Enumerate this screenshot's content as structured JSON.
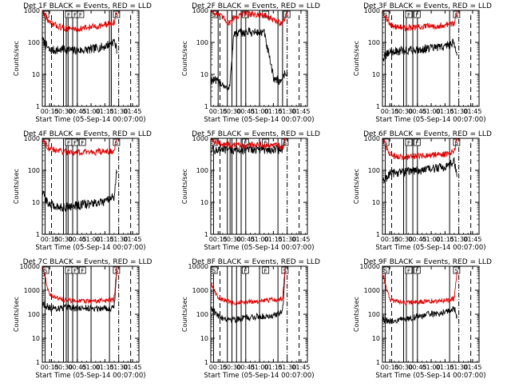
{
  "figure": {
    "x_tick_labels": [
      "00:15",
      "00:30",
      "00:45",
      "01:00",
      "01:15",
      "01:30",
      "01:45"
    ],
    "xlabel": "Start Time (05-Sep-14 00:07:00)",
    "ylabel": "Counts/sec",
    "colors": {
      "events": "#000000",
      "lld": "#e00000"
    },
    "marker_letters": [
      "S",
      "F"
    ]
  },
  "chart_data": [
    {
      "type": "line",
      "title": "Det 1F BLACK = Events, RED = LLD",
      "x_unit": "hh:mm",
      "ylim": [
        1,
        1000
      ],
      "yscale": "log",
      "y_tick_labels": [
        "1",
        "10",
        "100",
        "1000"
      ],
      "x": [
        "00:07",
        "00:15",
        "00:30",
        "00:45",
        "01:00",
        "01:15",
        "01:25",
        "01:28"
      ],
      "series": [
        {
          "name": "Events",
          "values": [
            120,
            55,
            60,
            55,
            60,
            75,
            110,
            60
          ]
        },
        {
          "name": "LLD",
          "values": [
            1000,
            400,
            280,
            260,
            300,
            350,
            420,
            900
          ]
        }
      ],
      "shutter_lines": [
        "00:10",
        "00:30",
        "00:33",
        "00:35",
        "00:40",
        "00:45",
        "01:20",
        "01:22"
      ],
      "dashed_lines": [
        "00:17",
        "01:43"
      ],
      "markers": [
        {
          "letter": "S",
          "at": "00:08"
        },
        {
          "letter": "F",
          "at": "00:33"
        },
        {
          "letter": "F",
          "at": "00:40"
        },
        {
          "letter": "F",
          "at": "00:46"
        },
        {
          "letter": "S",
          "at": "01:25"
        }
      ]
    },
    {
      "type": "line",
      "title": "Det 2F BLACK = Events, RED = LLD",
      "x_unit": "hh:mm",
      "ylim": [
        1,
        1000
      ],
      "yscale": "log",
      "y_tick_labels": [
        "1",
        "10",
        "100",
        "1000"
      ],
      "x": [
        "00:07",
        "00:20",
        "00:27",
        "00:32",
        "00:45",
        "01:05",
        "01:15",
        "01:22",
        "01:27",
        "01:30"
      ],
      "series": [
        {
          "name": "Events",
          "values": [
            7,
            5,
            3,
            180,
            210,
            200,
            8,
            6,
            10,
            12
          ]
        },
        {
          "name": "LLD",
          "values": [
            1000,
            600,
            400,
            600,
            800,
            700,
            500,
            400,
            500,
            900
          ]
        }
      ],
      "shutter_lines": [
        "00:15",
        "00:25",
        "00:30",
        "00:35",
        "00:40",
        "00:45",
        "01:00",
        "01:20",
        "01:25"
      ],
      "dashed_lines": [
        "00:17",
        "01:43"
      ],
      "markers": [
        {
          "letter": "S",
          "at": "00:08"
        },
        {
          "letter": "F",
          "at": "00:42"
        },
        {
          "letter": "F",
          "at": "01:04"
        },
        {
          "letter": "S",
          "at": "01:27"
        }
      ]
    },
    {
      "type": "line",
      "title": "Det 3F BLACK = Events, RED = LLD",
      "x_unit": "hh:mm",
      "ylim": [
        1,
        1000
      ],
      "yscale": "log",
      "y_tick_labels": [
        "1",
        "10",
        "100",
        "1000"
      ],
      "x": [
        "00:07",
        "00:15",
        "00:30",
        "00:45",
        "01:00",
        "01:15",
        "01:25",
        "01:28"
      ],
      "series": [
        {
          "name": "Events",
          "values": [
            30,
            50,
            55,
            60,
            65,
            75,
            100,
            40
          ]
        },
        {
          "name": "LLD",
          "values": [
            1000,
            350,
            280,
            300,
            320,
            350,
            400,
            900
          ]
        }
      ],
      "shutter_lines": [
        "00:10",
        "00:30",
        "00:33",
        "00:40",
        "00:45",
        "01:20"
      ],
      "dashed_lines": [
        "00:17",
        "01:43"
      ],
      "markers": [
        {
          "letter": "S",
          "at": "00:08"
        },
        {
          "letter": "F",
          "at": "00:33"
        },
        {
          "letter": "F",
          "at": "00:42"
        },
        {
          "letter": "S",
          "at": "01:25"
        }
      ]
    },
    {
      "type": "line",
      "title": "Det 4F BLACK = Events, RED = LLD",
      "x_unit": "hh:mm",
      "ylim": [
        1,
        1000
      ],
      "yscale": "log",
      "y_tick_labels": [
        "1",
        "10",
        "100",
        "1000"
      ],
      "x": [
        "00:07",
        "00:15",
        "00:30",
        "00:45",
        "01:00",
        "01:15",
        "01:25",
        "01:28"
      ],
      "series": [
        {
          "name": "Events",
          "values": [
            20,
            8,
            7,
            8,
            9,
            10,
            15,
            100
          ]
        },
        {
          "name": "LLD",
          "values": [
            1000,
            450,
            380,
            360,
            370,
            380,
            400,
            1000
          ]
        }
      ],
      "shutter_lines": [
        "00:10",
        "00:30",
        "00:33",
        "00:35",
        "00:40",
        "00:45",
        "01:20"
      ],
      "dashed_lines": [
        "00:17",
        "01:43"
      ],
      "markers": [
        {
          "letter": "S",
          "at": "00:08"
        },
        {
          "letter": "F",
          "at": "00:33"
        },
        {
          "letter": "F",
          "at": "00:40"
        },
        {
          "letter": "F",
          "at": "00:48"
        },
        {
          "letter": "S",
          "at": "01:25"
        }
      ]
    },
    {
      "type": "line",
      "title": "Det 5F BLACK = Events, RED = LLD",
      "x_unit": "hh:mm",
      "ylim": [
        1,
        1000
      ],
      "yscale": "log",
      "y_tick_labels": [
        "1",
        "10",
        "100",
        "1000"
      ],
      "x": [
        "00:07",
        "00:15",
        "00:30",
        "00:45",
        "01:00",
        "01:15",
        "01:25",
        "01:28"
      ],
      "series": [
        {
          "name": "Events",
          "values": [
            450,
            420,
            430,
            440,
            450,
            440,
            450,
            1000
          ]
        },
        {
          "name": "LLD",
          "values": [
            1000,
            700,
            600,
            620,
            650,
            600,
            550,
            1000
          ]
        }
      ],
      "shutter_lines": [
        "00:10",
        "00:25",
        "00:28",
        "00:30",
        "00:35",
        "00:40",
        "00:45",
        "01:00",
        "01:20"
      ],
      "dashed_lines": [
        "00:17",
        "01:43"
      ],
      "markers": [
        {
          "letter": "S",
          "at": "00:08"
        },
        {
          "letter": "F",
          "at": "00:42"
        },
        {
          "letter": "F",
          "at": "01:04"
        },
        {
          "letter": "S",
          "at": "01:25"
        }
      ]
    },
    {
      "type": "line",
      "title": "Det 6F BLACK = Events, RED = LLD",
      "x_unit": "hh:mm",
      "ylim": [
        1,
        1000
      ],
      "yscale": "log",
      "y_tick_labels": [
        "1",
        "10",
        "100",
        "1000"
      ],
      "x": [
        "00:07",
        "00:15",
        "00:30",
        "00:45",
        "01:00",
        "01:15",
        "01:25",
        "01:28"
      ],
      "series": [
        {
          "name": "Events",
          "values": [
            40,
            80,
            90,
            100,
            110,
            130,
            180,
            60
          ]
        },
        {
          "name": "LLD",
          "values": [
            1000,
            300,
            250,
            280,
            300,
            320,
            400,
            1000
          ]
        }
      ],
      "shutter_lines": [
        "00:10",
        "00:30",
        "00:33",
        "00:40",
        "00:45",
        "01:20"
      ],
      "dashed_lines": [
        "00:17",
        "01:43"
      ],
      "markers": [
        {
          "letter": "S",
          "at": "00:08"
        },
        {
          "letter": "F",
          "at": "00:33"
        },
        {
          "letter": "F",
          "at": "00:42"
        },
        {
          "letter": "S",
          "at": "01:25"
        }
      ]
    },
    {
      "type": "line",
      "title": "Det 7C BLACK = Events, RED = LLD",
      "x_unit": "hh:mm",
      "ylim": [
        1,
        10000
      ],
      "yscale": "log",
      "y_tick_labels": [
        "1",
        "10",
        "100",
        "1000",
        "10000"
      ],
      "x": [
        "00:07",
        "00:15",
        "00:30",
        "00:45",
        "01:00",
        "01:15",
        "01:25",
        "01:28"
      ],
      "series": [
        {
          "name": "Events",
          "values": [
            300,
            180,
            180,
            180,
            180,
            180,
            180,
            10000
          ]
        },
        {
          "name": "LLD",
          "values": [
            10000,
            600,
            400,
            350,
            350,
            380,
            400,
            10000
          ]
        }
      ],
      "shutter_lines": [
        "00:10",
        "00:30",
        "00:33",
        "00:35",
        "00:40",
        "00:45",
        "01:00",
        "01:20"
      ],
      "dashed_lines": [
        "00:17",
        "01:43"
      ],
      "markers": [
        {
          "letter": "S",
          "at": "00:08"
        },
        {
          "letter": "F",
          "at": "00:33"
        },
        {
          "letter": "F",
          "at": "00:40"
        },
        {
          "letter": "F",
          "at": "00:48"
        },
        {
          "letter": "S",
          "at": "01:25"
        }
      ]
    },
    {
      "type": "line",
      "title": "Det 8F BLACK = Events, RED = LLD",
      "x_unit": "hh:mm",
      "ylim": [
        1,
        10000
      ],
      "yscale": "log",
      "y_tick_labels": [
        "1",
        "10",
        "100",
        "1000",
        "10000"
      ],
      "x": [
        "00:07",
        "00:15",
        "00:30",
        "00:45",
        "01:00",
        "01:15",
        "01:25",
        "01:28"
      ],
      "series": [
        {
          "name": "Events",
          "values": [
            200,
            80,
            60,
            70,
            80,
            90,
            120,
            10000
          ]
        },
        {
          "name": "LLD",
          "values": [
            2000,
            500,
            300,
            320,
            350,
            400,
            450,
            10000
          ]
        }
      ],
      "shutter_lines": [
        "00:10",
        "00:25",
        "00:30",
        "00:35",
        "00:40",
        "00:45",
        "01:00",
        "01:20"
      ],
      "dashed_lines": [
        "00:17",
        "01:43"
      ],
      "markers": [
        {
          "letter": "S",
          "at": "00:08"
        },
        {
          "letter": "F",
          "at": "00:42"
        },
        {
          "letter": "F",
          "at": "01:04"
        },
        {
          "letter": "S",
          "at": "01:25"
        }
      ]
    },
    {
      "type": "line",
      "title": "Det 9F BLACK = Events, RED = LLD",
      "x_unit": "hh:mm",
      "ylim": [
        1,
        10000
      ],
      "yscale": "log",
      "y_tick_labels": [
        "1",
        "10",
        "100",
        "1000",
        "10000"
      ],
      "x": [
        "00:07",
        "00:15",
        "00:30",
        "00:45",
        "01:00",
        "01:15",
        "01:25",
        "01:28"
      ],
      "series": [
        {
          "name": "Events",
          "values": [
            60,
            50,
            60,
            80,
            100,
            120,
            180,
            80
          ]
        },
        {
          "name": "LLD",
          "values": [
            5000,
            400,
            300,
            320,
            350,
            380,
            450,
            5000
          ]
        }
      ],
      "shutter_lines": [
        "00:10",
        "00:30",
        "00:33",
        "00:40",
        "00:45",
        "01:20"
      ],
      "dashed_lines": [
        "00:17",
        "01:43"
      ],
      "markers": [
        {
          "letter": "S",
          "at": "00:08"
        },
        {
          "letter": "F",
          "at": "00:33"
        },
        {
          "letter": "F",
          "at": "00:42"
        },
        {
          "letter": "S",
          "at": "01:25"
        }
      ]
    }
  ]
}
